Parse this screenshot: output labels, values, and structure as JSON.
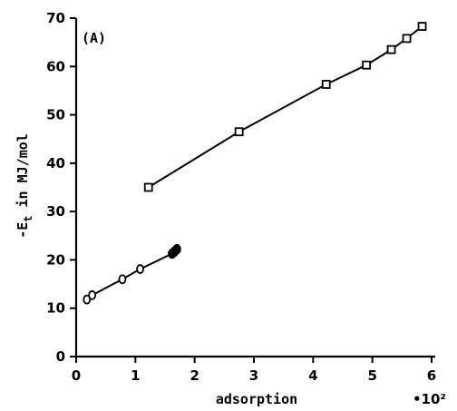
{
  "chart_data": {
    "type": "line",
    "title": "",
    "panel_label": "(A)",
    "xlabel": "adsorption",
    "x_multiplier": "•10²",
    "ylabel_main": "-E",
    "ylabel_sub": "t",
    "ylabel_rest": " in MJ/mol",
    "xlim": [
      0,
      6
    ],
    "ylim": [
      0,
      70
    ],
    "x_ticks": [
      0,
      1,
      2,
      3,
      4,
      5,
      6
    ],
    "y_ticks": [
      0,
      10,
      20,
      30,
      40,
      50,
      60,
      70
    ],
    "grid": false,
    "series": [
      {
        "marker": "square",
        "x": [
          1.22,
          2.75,
          4.22,
          4.9,
          5.32,
          5.58,
          5.84
        ],
        "y": [
          35,
          46.5,
          56.3,
          60.3,
          63.5,
          65.8,
          68.3
        ]
      },
      {
        "marker": "circle",
        "x": [
          0.18,
          0.27,
          0.78,
          1.08
        ],
        "y": [
          11.8,
          12.7,
          16.0,
          18.1
        ]
      },
      {
        "marker": "filled-circle",
        "x": [
          1.62,
          1.66,
          1.7
        ],
        "y": [
          21.3,
          21.7,
          22.2
        ]
      }
    ],
    "fit_lines": [
      {
        "x": [
          1.22,
          2.75,
          4.22,
          4.9,
          5.32,
          5.58,
          5.84
        ],
        "y": [
          35,
          46.5,
          56.3,
          60.3,
          63.5,
          65.8,
          68.3
        ]
      },
      {
        "x": [
          0.18,
          0.27,
          0.78,
          1.08,
          1.62,
          1.7
        ],
        "y": [
          11.8,
          12.7,
          16.0,
          18.1,
          21.3,
          22.2
        ]
      }
    ]
  }
}
